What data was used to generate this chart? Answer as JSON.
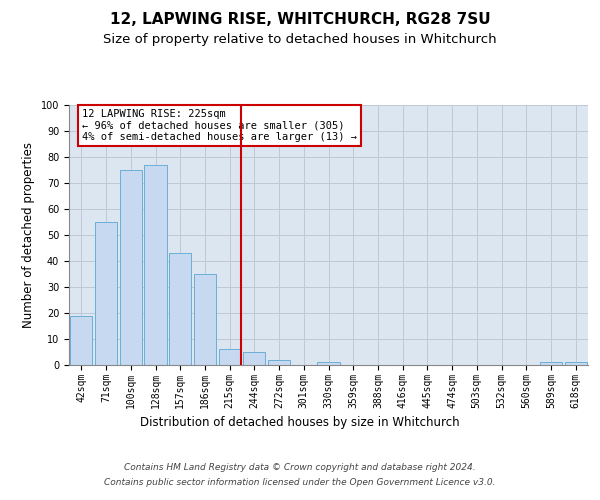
{
  "title": "12, LAPWING RISE, WHITCHURCH, RG28 7SU",
  "subtitle": "Size of property relative to detached houses in Whitchurch",
  "xlabel": "Distribution of detached houses by size in Whitchurch",
  "ylabel": "Number of detached properties",
  "categories": [
    "42sqm",
    "71sqm",
    "100sqm",
    "128sqm",
    "157sqm",
    "186sqm",
    "215sqm",
    "244sqm",
    "272sqm",
    "301sqm",
    "330sqm",
    "359sqm",
    "388sqm",
    "416sqm",
    "445sqm",
    "474sqm",
    "503sqm",
    "532sqm",
    "560sqm",
    "589sqm",
    "618sqm"
  ],
  "values": [
    19,
    55,
    75,
    77,
    43,
    35,
    6,
    5,
    2,
    0,
    1,
    0,
    0,
    0,
    0,
    0,
    0,
    0,
    0,
    1,
    1
  ],
  "bar_color": "#c6d9f0",
  "bar_edge_color": "#6baed6",
  "highlight_index": 6,
  "highlight_line_color": "#cc0000",
  "annotation_text": "12 LAPWING RISE: 225sqm\n← 96% of detached houses are smaller (305)\n4% of semi-detached houses are larger (13) →",
  "annotation_box_color": "#ffffff",
  "annotation_box_edge_color": "#cc0000",
  "ylim": [
    0,
    100
  ],
  "yticks": [
    0,
    10,
    20,
    30,
    40,
    50,
    60,
    70,
    80,
    90,
    100
  ],
  "grid_color": "#c0c8d8",
  "background_color": "#dce6f1",
  "footer_line1": "Contains HM Land Registry data © Crown copyright and database right 2024.",
  "footer_line2": "Contains public sector information licensed under the Open Government Licence v3.0.",
  "title_fontsize": 11,
  "subtitle_fontsize": 9.5,
  "axis_label_fontsize": 8.5,
  "tick_fontsize": 7,
  "annotation_fontsize": 7.5,
  "footer_fontsize": 6.5
}
